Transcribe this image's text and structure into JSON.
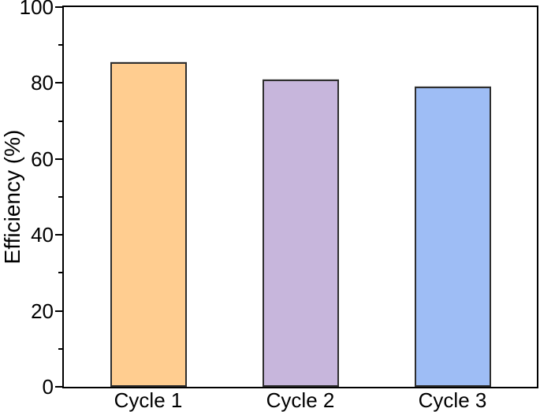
{
  "chart_data": {
    "type": "bar",
    "title": "",
    "categories": [
      "Cycle 1",
      "Cycle 2",
      "Cycle 3"
    ],
    "values": [
      85.5,
      81,
      79
    ],
    "series": [
      {
        "name": "Efficiency",
        "values": [
          85.5,
          81,
          79
        ],
        "bar_colors": [
          "#FFCD90",
          "#C7B6DC",
          "#9EBDF5"
        ]
      }
    ],
    "bar_border_color": "#2e2e2e",
    "axis_color": "#000000",
    "background_color": "#ffffff",
    "xlabel": "",
    "ylabel": "Efficiency (%)",
    "ylim": [
      0,
      100
    ],
    "yticks": [
      0,
      20,
      40,
      60,
      80,
      100
    ],
    "yticks_minor": [
      10,
      30,
      50,
      70,
      90
    ],
    "tick_direction": "out",
    "grid": false,
    "legend": false
  }
}
